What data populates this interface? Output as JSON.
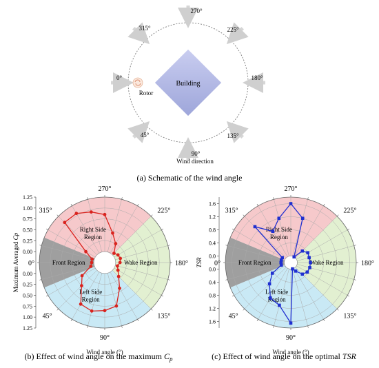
{
  "colors": {
    "front": "#9a9a9a",
    "right": "#f6c6c8",
    "wake": "#e0efcf",
    "left": "#c6e8f4",
    "cp_series": "#d9231e",
    "tsr_series": "#1f2fd0",
    "building": "#b3b9e3",
    "arrow": "#d9d9d9"
  },
  "schematic": {
    "caption": "(a) Schematic of the wind angle",
    "building_label": "Building",
    "rotor_label": "Rotor",
    "wind_direction_label": "Wind direction",
    "angle_labels": [
      "0°",
      "45°",
      "90°",
      "135°",
      "180°",
      "225°",
      "270°",
      "315°"
    ],
    "rotor_icon": "rotor-swirl-icon"
  },
  "chart_data": [
    {
      "type": "polar-line",
      "caption_prefix": "(b) Effect of wind angle on the maximum ",
      "caption_var": "C",
      "caption_sub": "p",
      "radial_axis_label_main": "Maximum Averaged ",
      "radial_axis_label_var": "Cp",
      "angular_axis_label": "Wind angle (°)",
      "angle_ticks": [
        "0°",
        "45°",
        "90°",
        "135°",
        "180°",
        "225°",
        "270°",
        "315°"
      ],
      "radial_ticks": [
        "1.25",
        "1.00",
        "0.75",
        "0.50",
        "0.25",
        "0.00"
      ],
      "radial_range": [
        -0.25,
        1.25
      ],
      "regions": [
        {
          "name": "Front Region",
          "label_lines": [
            "Front Region"
          ],
          "from": 337.5,
          "to": 22.5
        },
        {
          "name": "Left Side Region",
          "label_lines": [
            "Left Side",
            "Region"
          ],
          "from": 22.5,
          "to": 135
        },
        {
          "name": "Wake Region",
          "label_lines": [
            "Wake Region"
          ],
          "from": 135,
          "to": 225
        },
        {
          "name": "Right Side Region",
          "label_lines": [
            "Right Side",
            "Region"
          ],
          "from": 225,
          "to": 337.5
        }
      ],
      "series": [
        {
          "angles": [
            0,
            15,
            30,
            45,
            60,
            75,
            90,
            105,
            120,
            135,
            150,
            165,
            180,
            195,
            210,
            225,
            240,
            255,
            270,
            285,
            300,
            315,
            330,
            345
          ],
          "values": [
            0.05,
            0.08,
            0.35,
            0.5,
            0.85,
            0.9,
            0.85,
            0.78,
            0.43,
            0.2,
            0.1,
            0.05,
            0.1,
            0.12,
            0.1,
            0.05,
            0.25,
            0.45,
            0.85,
            0.95,
            1.05,
            1.05,
            0.25,
            0.05
          ]
        }
      ]
    },
    {
      "type": "polar-line",
      "caption_prefix": "(c) Effect of wind angle on the optimal ",
      "caption_var": "TSR",
      "caption_sub": "",
      "radial_axis_label_main": "",
      "radial_axis_label_var": "TSR",
      "angular_axis_label": "Wind angle (°)",
      "angle_ticks": [
        "0°",
        "45°",
        "90°",
        "135°",
        "180°",
        "225°",
        "270°",
        "315°"
      ],
      "radial_ticks": [
        "1.6",
        "1.2",
        "0.8",
        "0.4",
        "0.0"
      ],
      "radial_range": [
        -0.2,
        1.8
      ],
      "regions": [
        {
          "name": "Front Region",
          "label_lines": [
            "Front Region"
          ],
          "from": 337.5,
          "to": 22.5
        },
        {
          "name": "Left Side Region",
          "label_lines": [
            "Left Side",
            "Region"
          ],
          "from": 22.5,
          "to": 135
        },
        {
          "name": "Wake Region",
          "label_lines": [
            "Wake Region"
          ],
          "from": 135,
          "to": 225
        },
        {
          "name": "Right Side Region",
          "label_lines": [
            "Right Side",
            "Region"
          ],
          "from": 225,
          "to": 337.5
        }
      ],
      "series": [
        {
          "angles": [
            0,
            15,
            30,
            45,
            60,
            75,
            90,
            105,
            120,
            135,
            150,
            165,
            180,
            195,
            210,
            225,
            240,
            255,
            270,
            285,
            300,
            315,
            330,
            345
          ],
          "values": [
            0.1,
            0.1,
            0.45,
            0.72,
            1.05,
            1.15,
            1.65,
            0.0,
            0.1,
            0.3,
            0.38,
            0.4,
            0.4,
            0.38,
            0.4,
            0.3,
            0.0,
            1.2,
            1.6,
            1.2,
            0.9,
            1.35,
            0.1,
            0.1
          ]
        }
      ]
    }
  ]
}
